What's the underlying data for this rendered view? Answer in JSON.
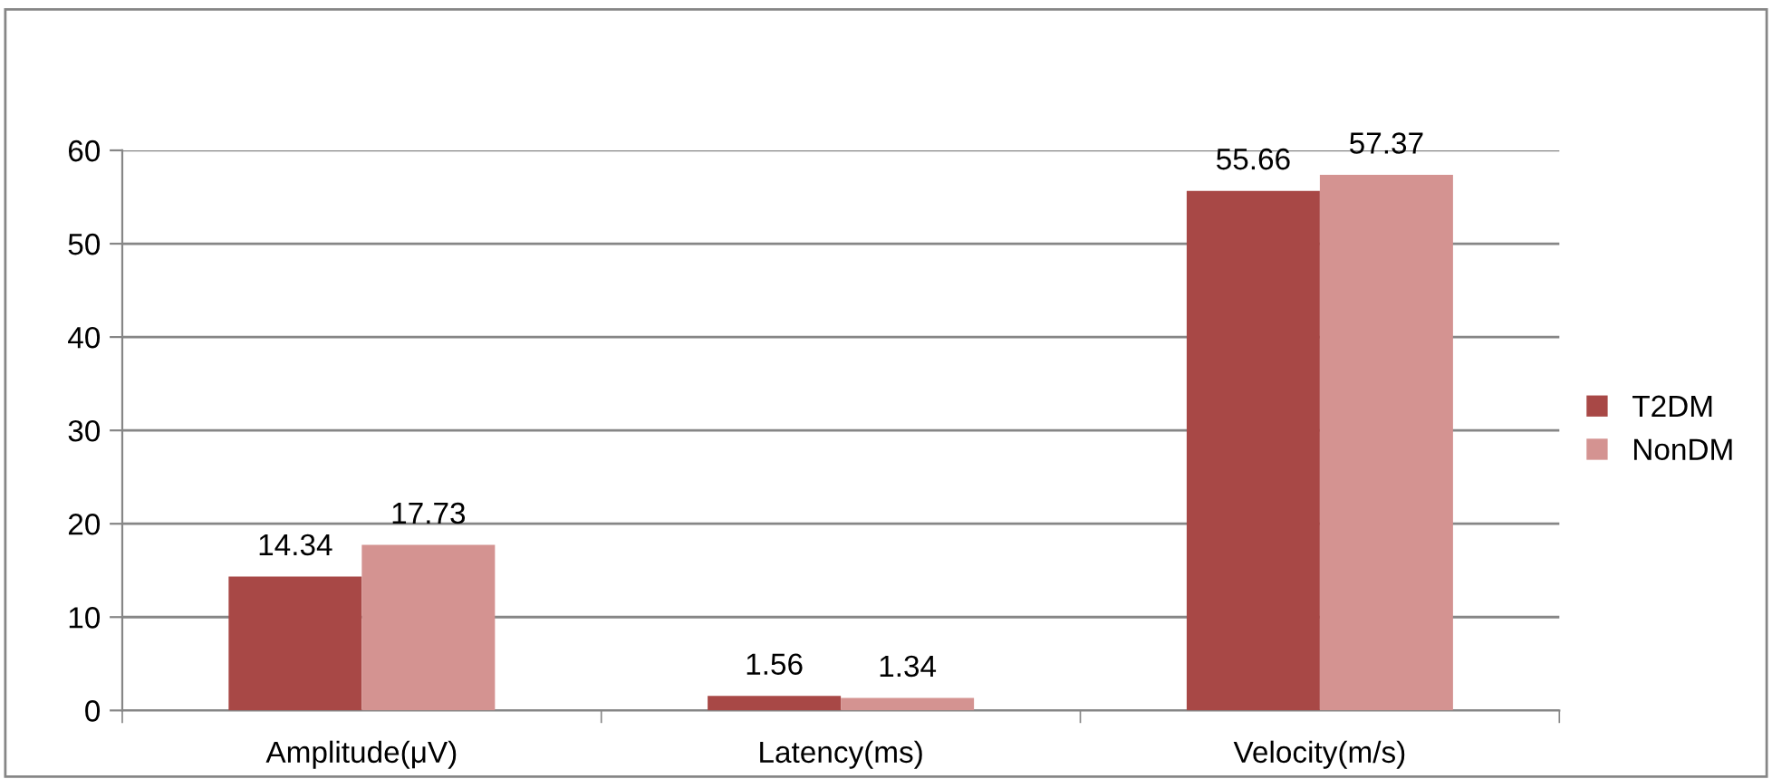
{
  "chart_data": {
    "type": "bar",
    "categories": [
      "Amplitude(μV)",
      "Latency(ms)",
      "Velocity(m/s)"
    ],
    "series": [
      {
        "name": "T2DM",
        "color": "#a84846",
        "values": [
          14.34,
          1.56,
          55.66
        ]
      },
      {
        "name": "NonDM",
        "color": "#d49391",
        "values": [
          17.73,
          1.34,
          57.37
        ]
      }
    ],
    "ylim": [
      0,
      60
    ],
    "yticks": [
      0,
      10,
      20,
      30,
      40,
      50,
      60
    ],
    "grid": "y",
    "legend": "right",
    "data_labels": true
  }
}
